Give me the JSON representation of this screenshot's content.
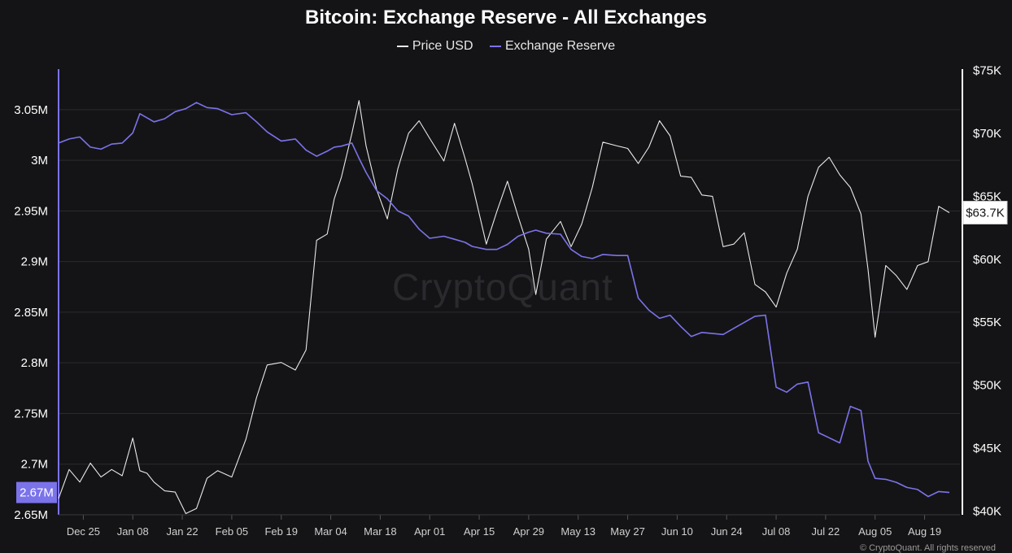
{
  "chart_data": {
    "type": "line",
    "title": "Bitcoin: Exchange Reserve - All Exchanges",
    "watermark": "CryptoQuant",
    "copyright": "© CryptoQuant. All rights reserved",
    "colors": {
      "background": "#141416",
      "price": "#e8e8e8",
      "reserve": "#7b73ea",
      "grid": "#2b2b2f"
    },
    "grid": true,
    "legend": "top-center",
    "x_ticks": [
      "Dec 25",
      "Jan 08",
      "Jan 22",
      "Feb 05",
      "Feb 19",
      "Mar 04",
      "Mar 18",
      "Apr 01",
      "Apr 15",
      "Apr 29",
      "May 13",
      "May 27",
      "Jun 10",
      "Jun 24",
      "Jul 08",
      "Jul 22",
      "Aug 05",
      "Aug 19"
    ],
    "left_axis": {
      "ylim": [
        2650000,
        3090000
      ],
      "ticks": [
        {
          "value": 3050000,
          "label": "3.05M"
        },
        {
          "value": 3000000,
          "label": "3M"
        },
        {
          "value": 2950000,
          "label": "2.95M"
        },
        {
          "value": 2900000,
          "label": "2.9M"
        },
        {
          "value": 2850000,
          "label": "2.85M"
        },
        {
          "value": 2800000,
          "label": "2.8M"
        },
        {
          "value": 2750000,
          "label": "2.75M"
        },
        {
          "value": 2700000,
          "label": "2.7M"
        },
        {
          "value": 2650000,
          "label": "2.65M"
        }
      ],
      "current_label": "2.67M",
      "current_value": 2672000
    },
    "right_axis": {
      "ylim": [
        39700,
        75100
      ],
      "ticks": [
        {
          "value": 75000,
          "label": "$75K"
        },
        {
          "value": 70000,
          "label": "$70K"
        },
        {
          "value": 65000,
          "label": "$65K"
        },
        {
          "value": 60000,
          "label": "$60K"
        },
        {
          "value": 55000,
          "label": "$55K"
        },
        {
          "value": 50000,
          "label": "$50K"
        },
        {
          "value": 45000,
          "label": "$45K"
        },
        {
          "value": 40000,
          "label": "$40K"
        }
      ],
      "current_label": "$63.7K",
      "current_value": 63700
    },
    "series": [
      {
        "name": "Price USD",
        "axis": "right",
        "color": "#e8e8e8",
        "x": [
          "Dec 18",
          "Dec 21",
          "Dec 24",
          "Dec 27",
          "Dec 30",
          "Jan 02",
          "Jan 05",
          "Jan 08",
          "Jan 10",
          "Jan 12",
          "Jan 14",
          "Jan 17",
          "Jan 20",
          "Jan 23",
          "Jan 26",
          "Jan 29",
          "Feb 01",
          "Feb 05",
          "Feb 09",
          "Feb 12",
          "Feb 15",
          "Feb 19",
          "Feb 23",
          "Feb 26",
          "Feb 29",
          "Mar 03",
          "Mar 05",
          "Mar 07",
          "Mar 10",
          "Mar 12",
          "Mar 14",
          "Mar 17",
          "Mar 20",
          "Mar 23",
          "Mar 26",
          "Mar 29",
          "Apr 01",
          "Apr 05",
          "Apr 08",
          "Apr 11",
          "Apr 13",
          "Apr 17",
          "Apr 20",
          "Apr 23",
          "Apr 26",
          "Apr 29",
          "May 01",
          "May 04",
          "May 08",
          "May 11",
          "May 14",
          "May 17",
          "May 20",
          "May 24",
          "May 27",
          "May 30",
          "Jun 02",
          "Jun 05",
          "Jun 08",
          "Jun 11",
          "Jun 14",
          "Jun 17",
          "Jun 20",
          "Jun 23",
          "Jun 26",
          "Jun 29",
          "Jul 02",
          "Jul 05",
          "Jul 08",
          "Jul 11",
          "Jul 14",
          "Jul 17",
          "Jul 20",
          "Jul 23",
          "Jul 26",
          "Jul 29",
          "Aug 01",
          "Aug 03",
          "Aug 05",
          "Aug 08",
          "Aug 11",
          "Aug 14",
          "Aug 17",
          "Aug 20",
          "Aug 23",
          "Aug 26"
        ],
        "values": [
          41000,
          43300,
          42300,
          43800,
          42700,
          43300,
          42800,
          45800,
          43200,
          43000,
          42300,
          41600,
          41500,
          39800,
          40200,
          42600,
          43200,
          42700,
          45700,
          49000,
          51600,
          51800,
          51200,
          52800,
          61500,
          62000,
          64800,
          66500,
          70000,
          72600,
          69000,
          65500,
          63200,
          67200,
          70000,
          71000,
          69600,
          67800,
          70800,
          68000,
          66000,
          61200,
          63800,
          66200,
          63400,
          60800,
          57200,
          61600,
          63000,
          61000,
          62800,
          65700,
          69300,
          69000,
          68800,
          67600,
          68900,
          71000,
          69800,
          66600,
          66500,
          65100,
          65000,
          61000,
          61200,
          62100,
          58000,
          57400,
          56200,
          58900,
          60800,
          65000,
          67300,
          68100,
          66700,
          65700,
          63600,
          59200,
          53800,
          59500,
          58700,
          57600,
          59500,
          59800,
          64200,
          63700
        ]
      },
      {
        "name": "Exchange Reserve",
        "axis": "left",
        "color": "#7b73ea",
        "x": [
          "Dec 18",
          "Dec 21",
          "Dec 24",
          "Dec 27",
          "Dec 30",
          "Jan 02",
          "Jan 05",
          "Jan 08",
          "Jan 10",
          "Jan 12",
          "Jan 14",
          "Jan 17",
          "Jan 20",
          "Jan 23",
          "Jan 26",
          "Jan 29",
          "Feb 01",
          "Feb 05",
          "Feb 09",
          "Feb 12",
          "Feb 15",
          "Feb 19",
          "Feb 23",
          "Feb 26",
          "Feb 29",
          "Mar 03",
          "Mar 05",
          "Mar 07",
          "Mar 10",
          "Mar 12",
          "Mar 14",
          "Mar 17",
          "Mar 20",
          "Mar 23",
          "Mar 26",
          "Mar 29",
          "Apr 01",
          "Apr 05",
          "Apr 08",
          "Apr 11",
          "Apr 13",
          "Apr 17",
          "Apr 20",
          "Apr 23",
          "Apr 26",
          "Apr 29",
          "May 01",
          "May 04",
          "May 08",
          "May 11",
          "May 14",
          "May 17",
          "May 20",
          "May 24",
          "May 27",
          "May 30",
          "Jun 02",
          "Jun 05",
          "Jun 08",
          "Jun 11",
          "Jun 14",
          "Jun 17",
          "Jun 20",
          "Jun 23",
          "Jun 26",
          "Jun 29",
          "Jul 02",
          "Jul 05",
          "Jul 08",
          "Jul 11",
          "Jul 14",
          "Jul 17",
          "Jul 20",
          "Jul 23",
          "Jul 26",
          "Jul 29",
          "Aug 01",
          "Aug 03",
          "Aug 05",
          "Aug 08",
          "Aug 11",
          "Aug 14",
          "Aug 17",
          "Aug 20",
          "Aug 23",
          "Aug 26"
        ],
        "values": [
          3017000,
          3021000,
          3023000,
          3013000,
          3011000,
          3016000,
          3017000,
          3027000,
          3046000,
          3042000,
          3038000,
          3041000,
          3048000,
          3051000,
          3057000,
          3052000,
          3051000,
          3045000,
          3047000,
          3038000,
          3028000,
          3019000,
          3021000,
          3010000,
          3004000,
          3009000,
          3013000,
          3014000,
          3017000,
          3002000,
          2988000,
          2970000,
          2962000,
          2950000,
          2945000,
          2932000,
          2923000,
          2925000,
          2922000,
          2919000,
          2915000,
          2912000,
          2912000,
          2917000,
          2925000,
          2929000,
          2931000,
          2928000,
          2927000,
          2912000,
          2905000,
          2903000,
          2907000,
          2906000,
          2906000,
          2864000,
          2852000,
          2844000,
          2847000,
          2836000,
          2826000,
          2830000,
          2829000,
          2828000,
          2834000,
          2840000,
          2846000,
          2847000,
          2776000,
          2771000,
          2779000,
          2781000,
          2731000,
          2726000,
          2721000,
          2757000,
          2753000,
          2703000,
          2686000,
          2685000,
          2682000,
          2677000,
          2675000,
          2668000,
          2673000,
          2672000
        ]
      }
    ]
  }
}
